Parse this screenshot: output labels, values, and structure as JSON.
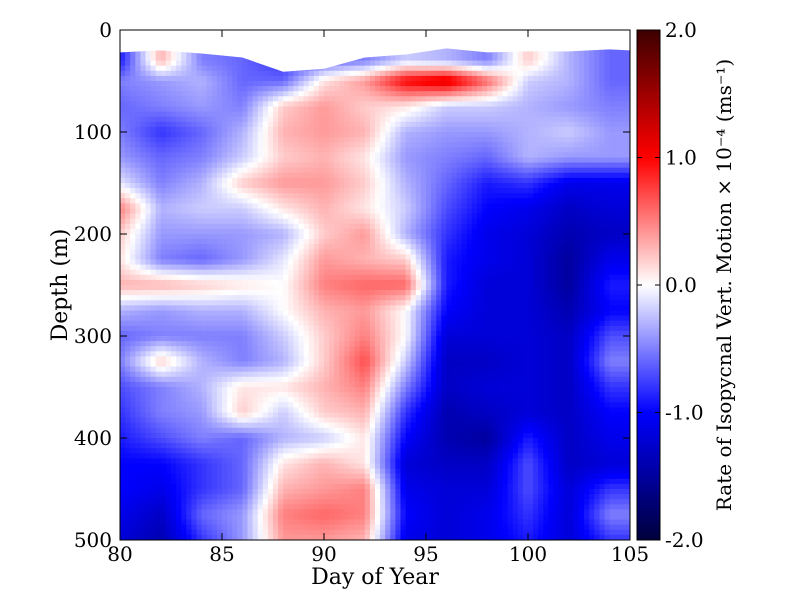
{
  "chart_data": {
    "type": "heatmap",
    "title": "",
    "xlabel": "Day of Year",
    "ylabel": "Depth (m)",
    "xlim": [
      80,
      105
    ],
    "ylim": [
      500,
      0
    ],
    "x_ticks": [
      80,
      85,
      90,
      95,
      100,
      105
    ],
    "x_tick_labels": [
      "80",
      "85",
      "90",
      "95",
      "100",
      "105"
    ],
    "y_ticks": [
      0,
      100,
      200,
      300,
      400,
      500
    ],
    "y_tick_labels": [
      "0",
      "100",
      "200",
      "300",
      "400",
      "500"
    ],
    "colorbar": {
      "label": "Rate of Isopycnal Vert. Motion × 10⁻⁴ (ms⁻¹)",
      "range": [
        -2.0,
        2.0
      ],
      "ticks": [
        2.0,
        1.0,
        0.0,
        -1.0,
        -2.0
      ],
      "tick_labels": [
        "2.0",
        "1.0",
        "0.0",
        "-1.0",
        "-2.0"
      ],
      "colormap": [
        "#00003c",
        "#0000ff",
        "#ffffff",
        "#ff0000",
        "#3c0000"
      ]
    },
    "days": [
      80,
      82,
      84,
      86,
      88,
      90,
      92,
      94,
      96,
      98,
      100,
      102,
      104,
      105
    ],
    "surface_depth": [
      22,
      20,
      23,
      27,
      41,
      38,
      27,
      24,
      18,
      22,
      21,
      21,
      19,
      20
    ],
    "depths": [
      30,
      50,
      75,
      100,
      125,
      150,
      175,
      200,
      225,
      250,
      275,
      300,
      325,
      350,
      375,
      400,
      425,
      450,
      475,
      500
    ],
    "values": [
      [
        -0.9,
        0.3,
        -0.5,
        -0.6,
        -0.8,
        -0.6,
        -0.5,
        -0.2,
        -0.3,
        -0.5,
        0.2,
        -0.3,
        -0.6,
        -0.6
      ],
      [
        -0.5,
        -0.4,
        -0.3,
        -0.6,
        -0.6,
        0.1,
        0.4,
        1.0,
        1.2,
        0.6,
        -0.2,
        -0.3,
        -0.6,
        -0.6
      ],
      [
        -0.6,
        -0.5,
        -0.4,
        -0.5,
        0.2,
        0.4,
        0.2,
        0.1,
        -0.2,
        -0.2,
        -0.3,
        -0.4,
        -0.5,
        -0.5
      ],
      [
        -0.5,
        -0.8,
        -0.6,
        -0.3,
        0.3,
        0.4,
        0.3,
        -0.3,
        -0.4,
        -0.4,
        -0.3,
        -0.2,
        -0.4,
        -0.4
      ],
      [
        -0.4,
        -0.6,
        -0.5,
        -0.2,
        0.2,
        0.3,
        0.1,
        -0.4,
        -0.5,
        -0.6,
        -0.3,
        -0.4,
        -0.4,
        -0.4
      ],
      [
        -0.1,
        -0.5,
        -0.3,
        0.2,
        0.4,
        0.4,
        0.2,
        -0.3,
        -0.6,
        -0.9,
        -0.8,
        -1.1,
        -1.1,
        -1.1
      ],
      [
        0.5,
        -0.3,
        -0.2,
        -0.2,
        0.1,
        0.3,
        0.1,
        -0.2,
        -0.7,
        -1.0,
        -1.1,
        -1.3,
        -1.2,
        -1.2
      ],
      [
        0.2,
        -0.4,
        -0.4,
        -0.4,
        -0.3,
        0.2,
        0.4,
        -0.3,
        -0.8,
        -1.1,
        -1.2,
        -1.4,
        -1.3,
        -1.3
      ],
      [
        0.1,
        -0.5,
        -0.6,
        -0.4,
        -0.1,
        0.4,
        0.3,
        0.2,
        -0.9,
        -1.1,
        -1.2,
        -1.5,
        -1.1,
        -1.1
      ],
      [
        0.3,
        0.3,
        0.2,
        0.1,
        0.0,
        0.5,
        0.6,
        0.6,
        -0.9,
        -1.2,
        -1.2,
        -1.5,
        -0.9,
        -0.9
      ],
      [
        -0.3,
        -0.4,
        -0.3,
        -0.3,
        0.0,
        0.3,
        0.4,
        0.0,
        -1.0,
        -1.2,
        -1.2,
        -1.4,
        -1.0,
        -1.0
      ],
      [
        -0.6,
        -0.5,
        -0.5,
        -0.5,
        -0.2,
        0.2,
        0.5,
        0.0,
        -1.2,
        -1.2,
        -1.2,
        -1.3,
        -0.7,
        -0.7
      ],
      [
        -0.5,
        0.2,
        -0.3,
        -0.5,
        -0.3,
        0.2,
        0.7,
        -0.2,
        -1.3,
        -1.3,
        -1.2,
        -1.3,
        -0.5,
        -0.5
      ],
      [
        -0.7,
        -0.5,
        -0.3,
        0.1,
        0.1,
        0.3,
        0.5,
        -0.5,
        -1.3,
        -1.2,
        -1.2,
        -1.3,
        -0.8,
        -0.8
      ],
      [
        -0.8,
        -0.5,
        -0.4,
        0.2,
        -0.2,
        0.2,
        0.3,
        -0.8,
        -1.4,
        -1.3,
        -1.2,
        -1.3,
        -1.0,
        -1.0
      ],
      [
        -0.9,
        -0.7,
        -0.5,
        -0.6,
        -0.3,
        -0.2,
        0.1,
        -1.0,
        -1.4,
        -1.5,
        -0.9,
        -1.3,
        -1.1,
        -1.1
      ],
      [
        -1.0,
        -1.0,
        -0.8,
        -0.6,
        0.1,
        0.3,
        0.1,
        -1.2,
        -1.3,
        -1.3,
        -0.7,
        -1.3,
        -1.2,
        -1.2
      ],
      [
        -1.0,
        -1.1,
        -0.8,
        -0.6,
        0.3,
        0.4,
        0.5,
        -1.1,
        -1.2,
        -1.2,
        -0.7,
        -1.2,
        -0.8,
        -0.8
      ],
      [
        -1.1,
        -1.3,
        -0.6,
        -0.4,
        0.5,
        0.6,
        0.5,
        -1.0,
        -1.2,
        -1.1,
        -0.8,
        -1.2,
        -0.5,
        -0.5
      ],
      [
        -1.2,
        -1.4,
        -0.8,
        -0.4,
        0.4,
        0.4,
        0.3,
        -1.1,
        -1.2,
        -1.1,
        -0.9,
        -1.2,
        -0.8,
        -0.8
      ]
    ]
  }
}
